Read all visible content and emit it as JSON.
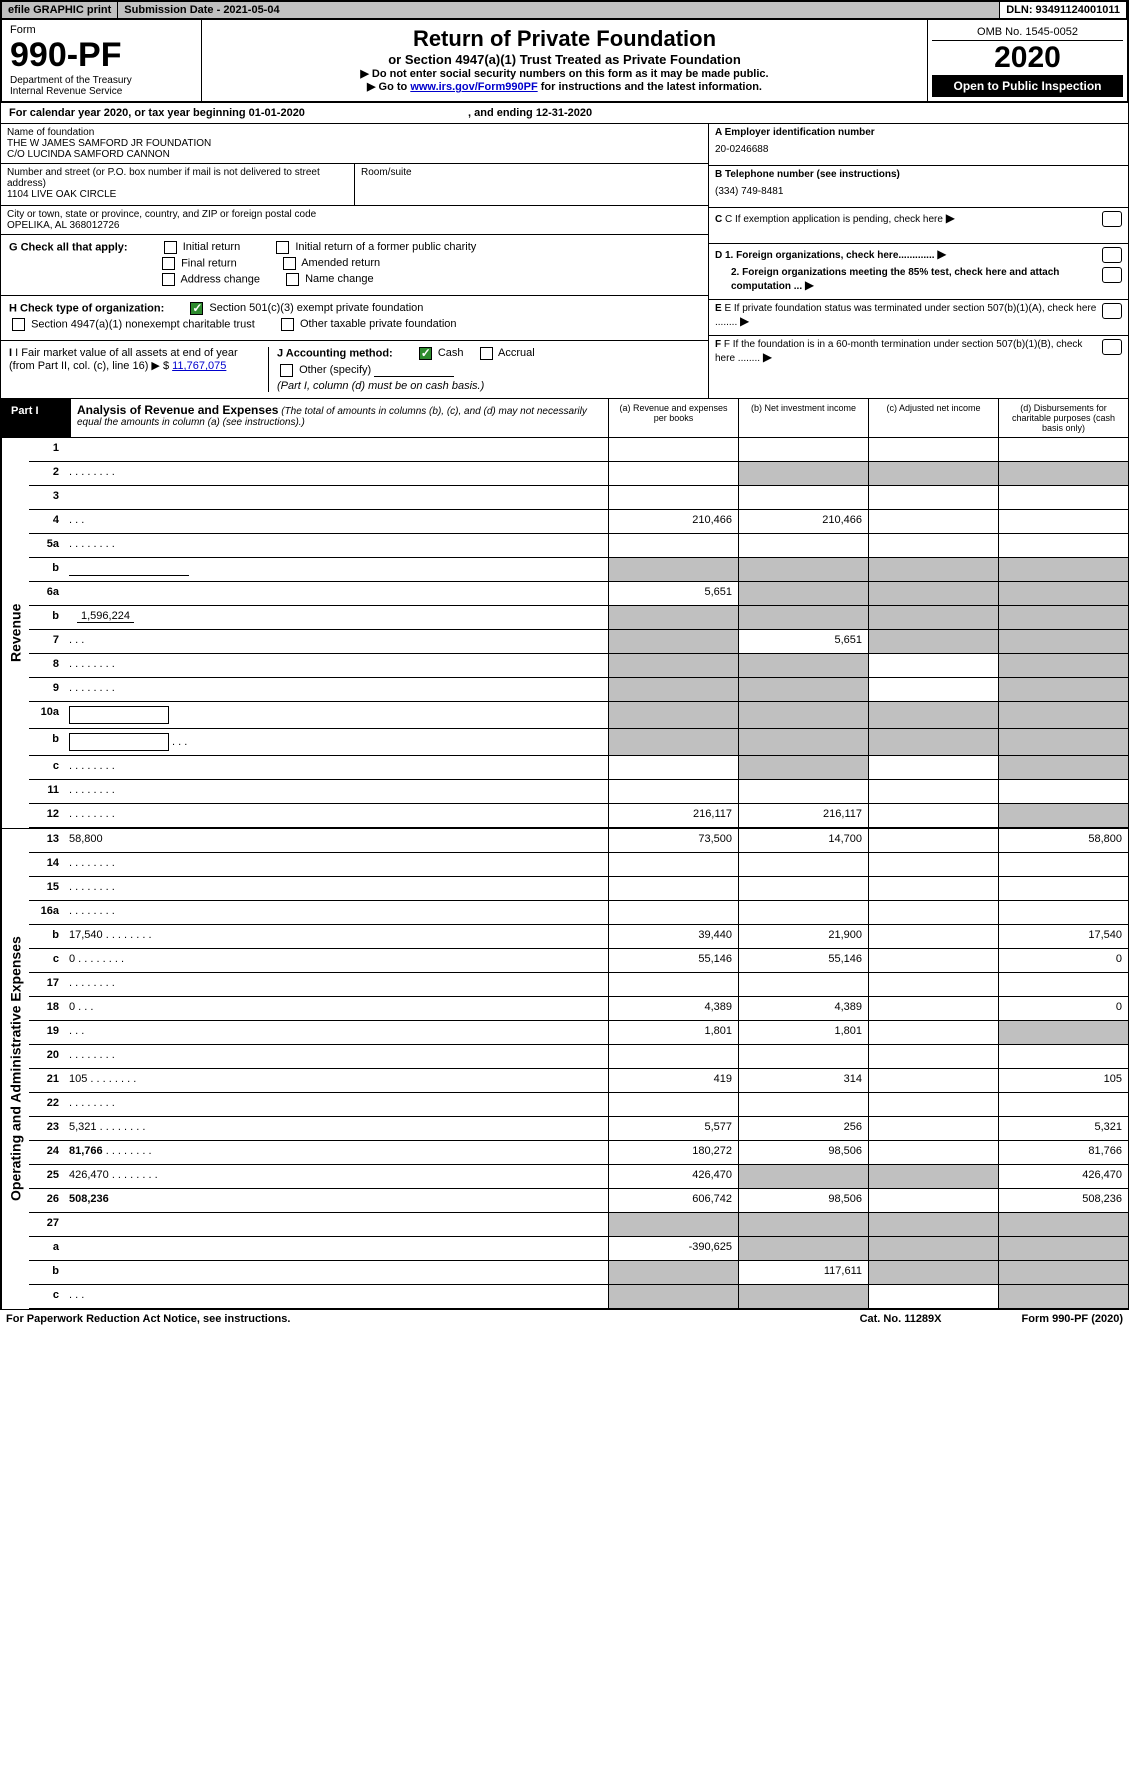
{
  "top": {
    "efile": "efile GRAPHIC print",
    "submission": "Submission Date - 2021-05-04",
    "dln": "DLN: 93491124001011"
  },
  "header": {
    "form": "Form",
    "formnum": "990-PF",
    "dept": "Department of the Treasury",
    "irs": "Internal Revenue Service",
    "title": "Return of Private Foundation",
    "subtitle": "or Section 4947(a)(1) Trust Treated as Private Foundation",
    "instr1": "▶ Do not enter social security numbers on this form as it may be made public.",
    "instr2_pre": "▶ Go to ",
    "instr2_link": "www.irs.gov/Form990PF",
    "instr2_post": " for instructions and the latest information.",
    "omb": "OMB No. 1545-0052",
    "year": "2020",
    "open": "Open to Public Inspection"
  },
  "cal": {
    "text_pre": "For calendar year 2020, or tax year beginning ",
    "begin": "01-01-2020",
    "mid": " , and ending ",
    "end": "12-31-2020"
  },
  "info": {
    "name_label": "Name of foundation",
    "name1": "THE W JAMES SAMFORD JR FOUNDATION",
    "name2": "C/O LUCINDA SAMFORD CANNON",
    "addr_label": "Number and street (or P.O. box number if mail is not delivered to street address)",
    "addr": "1104 LIVE OAK CIRCLE",
    "room_label": "Room/suite",
    "city_label": "City or town, state or province, country, and ZIP or foreign postal code",
    "city": "OPELIKA, AL  368012726",
    "a_label": "A Employer identification number",
    "a_val": "20-0246688",
    "b_label": "B Telephone number (see instructions)",
    "b_val": "(334) 749-8481",
    "c_label": "C If exemption application is pending, check here",
    "d1": "D 1. Foreign organizations, check here.............",
    "d2": "2. Foreign organizations meeting the 85% test, check here and attach computation ...",
    "e_label": "E  If private foundation status was terminated under section 507(b)(1)(A), check here ........",
    "f_label": "F  If the foundation is in a 60-month termination under section 507(b)(1)(B), check here ........"
  },
  "g": {
    "label": "G Check all that apply:",
    "opts": [
      "Initial return",
      "Initial return of a former public charity",
      "Final return",
      "Amended return",
      "Address change",
      "Name change"
    ]
  },
  "h": {
    "label": "H Check type of organization:",
    "opt1": "Section 501(c)(3) exempt private foundation",
    "opt2": "Section 4947(a)(1) nonexempt charitable trust",
    "opt3": "Other taxable private foundation"
  },
  "i": {
    "label": "I Fair market value of all assets at end of year (from Part II, col. (c), line 16)",
    "val": "11,767,075"
  },
  "j": {
    "label": "J Accounting method:",
    "cash": "Cash",
    "accrual": "Accrual",
    "other": "Other (specify)",
    "note": "(Part I, column (d) must be on cash basis.)"
  },
  "part1": {
    "label": "Part I",
    "title": "Analysis of Revenue and Expenses",
    "note": "(The total of amounts in columns (b), (c), and (d) may not necessarily equal the amounts in column (a) (see instructions).)",
    "cols": [
      "(a)  Revenue and expenses per books",
      "(b)  Net investment income",
      "(c)  Adjusted net income",
      "(d)  Disbursements for charitable purposes (cash basis only)"
    ]
  },
  "side": {
    "revenue": "Revenue",
    "expenses": "Operating and Administrative Expenses"
  },
  "rows": [
    {
      "n": "1",
      "d": "",
      "a": "",
      "b": "",
      "c": ""
    },
    {
      "n": "2",
      "d": "",
      "a": "",
      "b": "",
      "c": "",
      "dots": true,
      "shadeB": true,
      "shadeC": true,
      "shadeD": true
    },
    {
      "n": "3",
      "d": "",
      "a": "",
      "b": "",
      "c": ""
    },
    {
      "n": "4",
      "d": "",
      "a": "210,466",
      "b": "210,466",
      "c": "",
      "dots_short": true
    },
    {
      "n": "5a",
      "d": "",
      "a": "",
      "b": "",
      "c": "",
      "dots": true
    },
    {
      "n": "b",
      "d": "",
      "a": "",
      "b": "",
      "c": "",
      "inline_box": true,
      "shadeA": true,
      "shadeB": true,
      "shadeC": true,
      "shadeD": true
    },
    {
      "n": "6a",
      "d": "",
      "a": "5,651",
      "b": "",
      "c": "",
      "shadeB": true,
      "shadeC": true,
      "shadeD": true
    },
    {
      "n": "b",
      "d": "",
      "a": "",
      "b": "",
      "c": "",
      "inline_val": "1,596,224",
      "shadeA": true,
      "shadeB": true,
      "shadeC": true,
      "shadeD": true
    },
    {
      "n": "7",
      "d": "",
      "a": "",
      "b": "5,651",
      "c": "",
      "dots_short": true,
      "shadeA": true,
      "shadeC": true,
      "shadeD": true
    },
    {
      "n": "8",
      "d": "",
      "a": "",
      "b": "",
      "c": "",
      "dots": true,
      "shadeA": true,
      "shadeB": true,
      "shadeD": true
    },
    {
      "n": "9",
      "d": "",
      "a": "",
      "b": "",
      "c": "",
      "dots": true,
      "shadeA": true,
      "shadeB": true,
      "shadeD": true
    },
    {
      "n": "10a",
      "d": "",
      "a": "",
      "b": "",
      "c": "",
      "inline_box_lg": true,
      "shadeA": true,
      "shadeB": true,
      "shadeC": true,
      "shadeD": true
    },
    {
      "n": "b",
      "d": "",
      "a": "",
      "b": "",
      "c": "",
      "dots_short": true,
      "inline_box_lg": true,
      "shadeA": true,
      "shadeB": true,
      "shadeC": true,
      "shadeD": true
    },
    {
      "n": "c",
      "d": "",
      "a": "",
      "b": "",
      "c": "",
      "dots": true,
      "shadeB": true,
      "shadeD": true
    },
    {
      "n": "11",
      "d": "",
      "a": "",
      "b": "",
      "c": "",
      "dots": true
    },
    {
      "n": "12",
      "d": "",
      "a": "216,117",
      "b": "216,117",
      "c": "",
      "bold": true,
      "dots": true,
      "shadeD": true
    }
  ],
  "exp_rows": [
    {
      "n": "13",
      "d": "58,800",
      "a": "73,500",
      "b": "14,700",
      "c": ""
    },
    {
      "n": "14",
      "d": "",
      "a": "",
      "b": "",
      "c": "",
      "dots": true
    },
    {
      "n": "15",
      "d": "",
      "a": "",
      "b": "",
      "c": "",
      "dots": true
    },
    {
      "n": "16a",
      "d": "",
      "a": "",
      "b": "",
      "c": "",
      "dots": true
    },
    {
      "n": "b",
      "d": "17,540",
      "a": "39,440",
      "b": "21,900",
      "c": "",
      "dots": true
    },
    {
      "n": "c",
      "d": "0",
      "a": "55,146",
      "b": "55,146",
      "c": "",
      "dots": true
    },
    {
      "n": "17",
      "d": "",
      "a": "",
      "b": "",
      "c": "",
      "dots": true
    },
    {
      "n": "18",
      "d": "0",
      "a": "4,389",
      "b": "4,389",
      "c": "",
      "dots_short": true
    },
    {
      "n": "19",
      "d": "",
      "a": "1,801",
      "b": "1,801",
      "c": "",
      "dots_short": true,
      "shadeD": true
    },
    {
      "n": "20",
      "d": "",
      "a": "",
      "b": "",
      "c": "",
      "dots": true
    },
    {
      "n": "21",
      "d": "105",
      "a": "419",
      "b": "314",
      "c": "",
      "dots": true
    },
    {
      "n": "22",
      "d": "",
      "a": "",
      "b": "",
      "c": "",
      "dots": true
    },
    {
      "n": "23",
      "d": "5,321",
      "a": "5,577",
      "b": "256",
      "c": "",
      "dots": true
    },
    {
      "n": "24",
      "d": "81,766",
      "a": "180,272",
      "b": "98,506",
      "c": "",
      "bold": true,
      "dots": true
    },
    {
      "n": "25",
      "d": "426,470",
      "a": "426,470",
      "b": "",
      "c": "",
      "dots": true,
      "shadeB": true,
      "shadeC": true
    },
    {
      "n": "26",
      "d": "508,236",
      "a": "606,742",
      "b": "98,506",
      "c": "",
      "bold": true
    },
    {
      "n": "27",
      "d": "",
      "a": "",
      "b": "",
      "c": "",
      "shadeA": true,
      "shadeB": true,
      "shadeC": true,
      "shadeD": true
    },
    {
      "n": "a",
      "d": "",
      "a": "-390,625",
      "b": "",
      "c": "",
      "bold": true,
      "shadeB": true,
      "shadeC": true,
      "shadeD": true
    },
    {
      "n": "b",
      "d": "",
      "a": "",
      "b": "117,611",
      "c": "",
      "bold": true,
      "shadeA": true,
      "shadeC": true,
      "shadeD": true
    },
    {
      "n": "c",
      "d": "",
      "a": "",
      "b": "",
      "c": "",
      "bold": true,
      "dots_short": true,
      "shadeA": true,
      "shadeB": true,
      "shadeD": true
    }
  ],
  "footer": {
    "left": "For Paperwork Reduction Act Notice, see instructions.",
    "mid": "Cat. No. 11289X",
    "right": "Form 990-PF (2020)"
  }
}
